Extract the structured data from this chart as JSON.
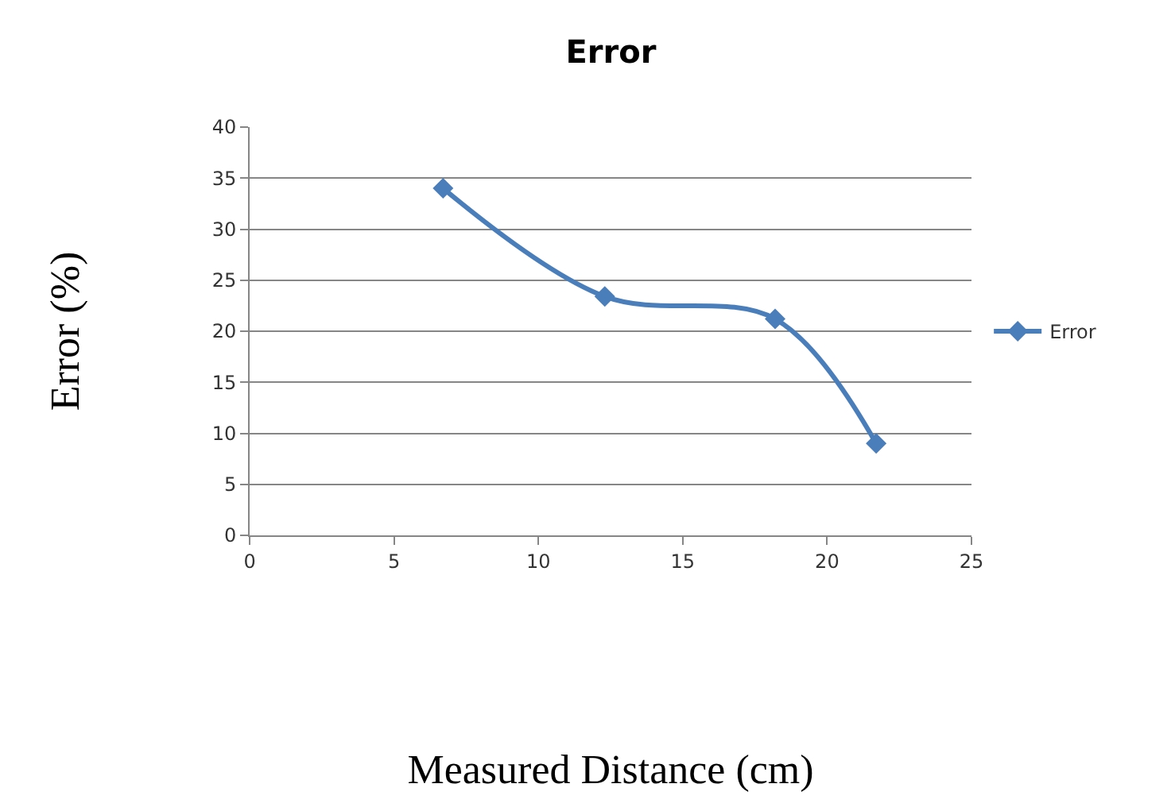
{
  "chart_data": {
    "type": "line",
    "title": "Error",
    "xlabel": "Measured Distance (cm)",
    "ylabel": "Error (%)",
    "x": [
      6.7,
      12.3,
      18.2,
      21.7
    ],
    "series": [
      {
        "name": "Error",
        "color": "#4a7ebb",
        "values": [
          34,
          23.4,
          21.2,
          9
        ]
      }
    ],
    "xlim": [
      0,
      25
    ],
    "xticks": [
      0,
      5,
      10,
      15,
      20,
      25
    ],
    "ylim": [
      0,
      40
    ],
    "yticks": [
      0,
      5,
      10,
      15,
      20,
      25,
      30,
      35,
      40
    ],
    "grid": "y",
    "legend": "right",
    "marker": "diamond",
    "line_style": "solid"
  }
}
